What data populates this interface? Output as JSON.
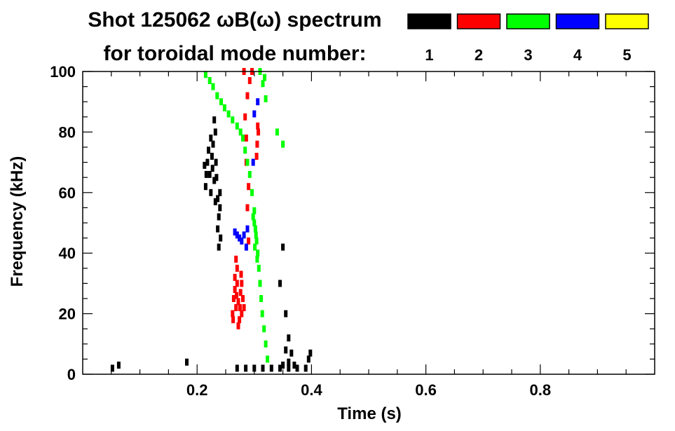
{
  "chart_data": {
    "type": "scatter",
    "title": "Shot 125062 ωB(ω) spectrum",
    "subtitle": "for toroidal mode number:",
    "xlabel": "Time (s)",
    "ylabel": "Frequency (kHz)",
    "xlim": [
      0.0,
      1.0
    ],
    "ylim": [
      0,
      100
    ],
    "x_ticks": [
      0.2,
      0.4,
      0.6,
      0.8
    ],
    "x_tick_labels": [
      "0.2",
      "0.4",
      "0.6",
      "0.8"
    ],
    "y_ticks": [
      0,
      20,
      40,
      60,
      80,
      100
    ],
    "y_tick_labels": [
      "0",
      "20",
      "40",
      "60",
      "80",
      "100"
    ],
    "grid": false,
    "legend_position": "top-right",
    "series": [
      {
        "name": "1",
        "color": "#000000",
        "points": [
          [
            0.213,
            69
          ],
          [
            0.215,
            62
          ],
          [
            0.218,
            70
          ],
          [
            0.22,
            74
          ],
          [
            0.222,
            66
          ],
          [
            0.224,
            60
          ],
          [
            0.226,
            72
          ],
          [
            0.228,
            76
          ],
          [
            0.23,
            64
          ],
          [
            0.232,
            57
          ],
          [
            0.234,
            65
          ],
          [
            0.236,
            58
          ],
          [
            0.238,
            52
          ],
          [
            0.24,
            60
          ],
          [
            0.232,
            80
          ],
          [
            0.23,
            84
          ],
          [
            0.236,
            48
          ],
          [
            0.238,
            42
          ],
          [
            0.227,
            68
          ],
          [
            0.233,
            70
          ],
          [
            0.24,
            55
          ],
          [
            0.241,
            45
          ],
          [
            0.216,
            66
          ],
          [
            0.224,
            78
          ],
          [
            0.27,
            2
          ],
          [
            0.285,
            2
          ],
          [
            0.3,
            2
          ],
          [
            0.315,
            2
          ],
          [
            0.33,
            2
          ],
          [
            0.345,
            2
          ],
          [
            0.36,
            2
          ],
          [
            0.375,
            2
          ],
          [
            0.39,
            2
          ],
          [
            0.36,
            4
          ],
          [
            0.35,
            3
          ],
          [
            0.37,
            3
          ],
          [
            0.355,
            8
          ],
          [
            0.36,
            12
          ],
          [
            0.365,
            7
          ],
          [
            0.395,
            5
          ],
          [
            0.398,
            7
          ],
          [
            0.35,
            42
          ],
          [
            0.345,
            30
          ],
          [
            0.355,
            20
          ],
          [
            0.052,
            2
          ],
          [
            0.063,
            3
          ],
          [
            0.182,
            4
          ]
        ]
      },
      {
        "name": "2",
        "color": "#ff0000",
        "points": [
          [
            0.262,
            20
          ],
          [
            0.264,
            25
          ],
          [
            0.266,
            28
          ],
          [
            0.268,
            22
          ],
          [
            0.27,
            30
          ],
          [
            0.272,
            24
          ],
          [
            0.274,
            18
          ],
          [
            0.276,
            27
          ],
          [
            0.278,
            20
          ],
          [
            0.28,
            25
          ],
          [
            0.266,
            32
          ],
          [
            0.27,
            35
          ],
          [
            0.268,
            38
          ],
          [
            0.272,
            16
          ],
          [
            0.275,
            22
          ],
          [
            0.263,
            18
          ],
          [
            0.278,
            30
          ],
          [
            0.282,
            22
          ],
          [
            0.269,
            26
          ],
          [
            0.277,
            33
          ],
          [
            0.282,
            100
          ],
          [
            0.284,
            85
          ],
          [
            0.286,
            70
          ],
          [
            0.288,
            55
          ],
          [
            0.29,
            44
          ],
          [
            0.286,
            78
          ],
          [
            0.288,
            92
          ],
          [
            0.29,
            62
          ],
          [
            0.305,
            76
          ],
          [
            0.307,
            80
          ],
          [
            0.304,
            72
          ],
          [
            0.306,
            82
          ],
          [
            0.292,
            97
          ],
          [
            0.296,
            100
          ]
        ]
      },
      {
        "name": "3",
        "color": "#00ff00",
        "points": [
          [
            0.215,
            99
          ],
          [
            0.222,
            97
          ],
          [
            0.228,
            95
          ],
          [
            0.235,
            92
          ],
          [
            0.242,
            90
          ],
          [
            0.248,
            88
          ],
          [
            0.255,
            86
          ],
          [
            0.262,
            84
          ],
          [
            0.27,
            82
          ],
          [
            0.276,
            80
          ],
          [
            0.28,
            78
          ],
          [
            0.284,
            74
          ],
          [
            0.288,
            70
          ],
          [
            0.292,
            66
          ],
          [
            0.296,
            60
          ],
          [
            0.3,
            54
          ],
          [
            0.302,
            48
          ],
          [
            0.304,
            44
          ],
          [
            0.306,
            40
          ],
          [
            0.308,
            35
          ],
          [
            0.31,
            30
          ],
          [
            0.312,
            25
          ],
          [
            0.314,
            20
          ],
          [
            0.317,
            15
          ],
          [
            0.32,
            10
          ],
          [
            0.323,
            5
          ],
          [
            0.3,
            50
          ],
          [
            0.303,
            46
          ],
          [
            0.298,
            52
          ],
          [
            0.301,
            42
          ],
          [
            0.305,
            38
          ],
          [
            0.31,
            100
          ],
          [
            0.315,
            96
          ],
          [
            0.32,
            91
          ],
          [
            0.318,
            98
          ],
          [
            0.34,
            80
          ],
          [
            0.35,
            76
          ]
        ]
      },
      {
        "name": "4",
        "color": "#0000ff",
        "points": [
          [
            0.266,
            47
          ],
          [
            0.27,
            46
          ],
          [
            0.274,
            45
          ],
          [
            0.278,
            44
          ],
          [
            0.282,
            46
          ],
          [
            0.286,
            42
          ],
          [
            0.288,
            48
          ],
          [
            0.306,
            90
          ],
          [
            0.3,
            86
          ],
          [
            0.298,
            70
          ]
        ]
      },
      {
        "name": "5",
        "color": "#ffff00",
        "points": []
      }
    ]
  }
}
